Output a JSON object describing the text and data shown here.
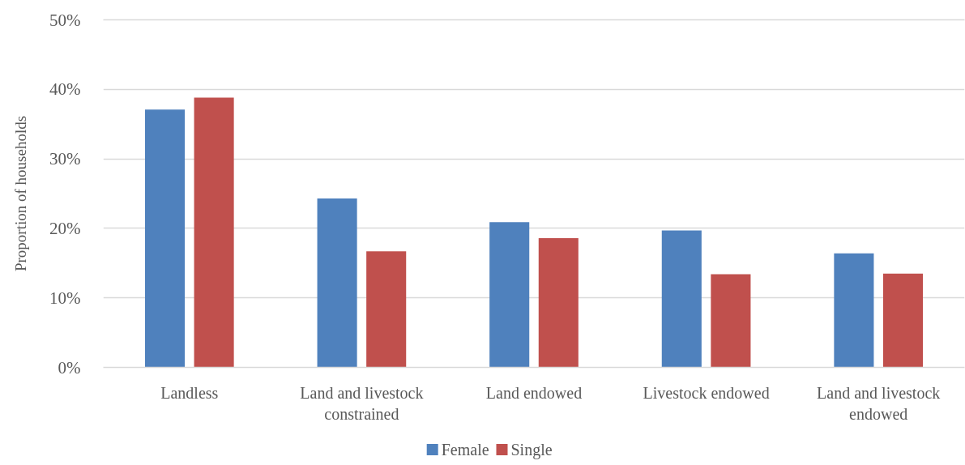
{
  "chart_data": {
    "type": "bar",
    "ylabel": "Proportion of households",
    "categories": [
      "Landless",
      "Land and livestock constrained",
      "Land endowed",
      "Livestock endowed",
      "Land and livestock endowed"
    ],
    "series": [
      {
        "name": "Female",
        "color": "#4f81bd",
        "values": [
          37.1,
          24.3,
          20.9,
          19.7,
          16.4
        ]
      },
      {
        "name": "Single",
        "color": "#c0504d",
        "values": [
          38.8,
          16.7,
          18.6,
          13.4,
          13.5
        ]
      }
    ],
    "ylim": [
      0,
      50
    ],
    "yticks": [
      {
        "value": 0,
        "label": "0%"
      },
      {
        "value": 10,
        "label": "10%"
      },
      {
        "value": 20,
        "label": "20%"
      },
      {
        "value": 30,
        "label": "30%"
      },
      {
        "value": 40,
        "label": "40%"
      },
      {
        "value": 50,
        "label": "50%"
      }
    ],
    "grid": "y",
    "legend": "bottom"
  }
}
